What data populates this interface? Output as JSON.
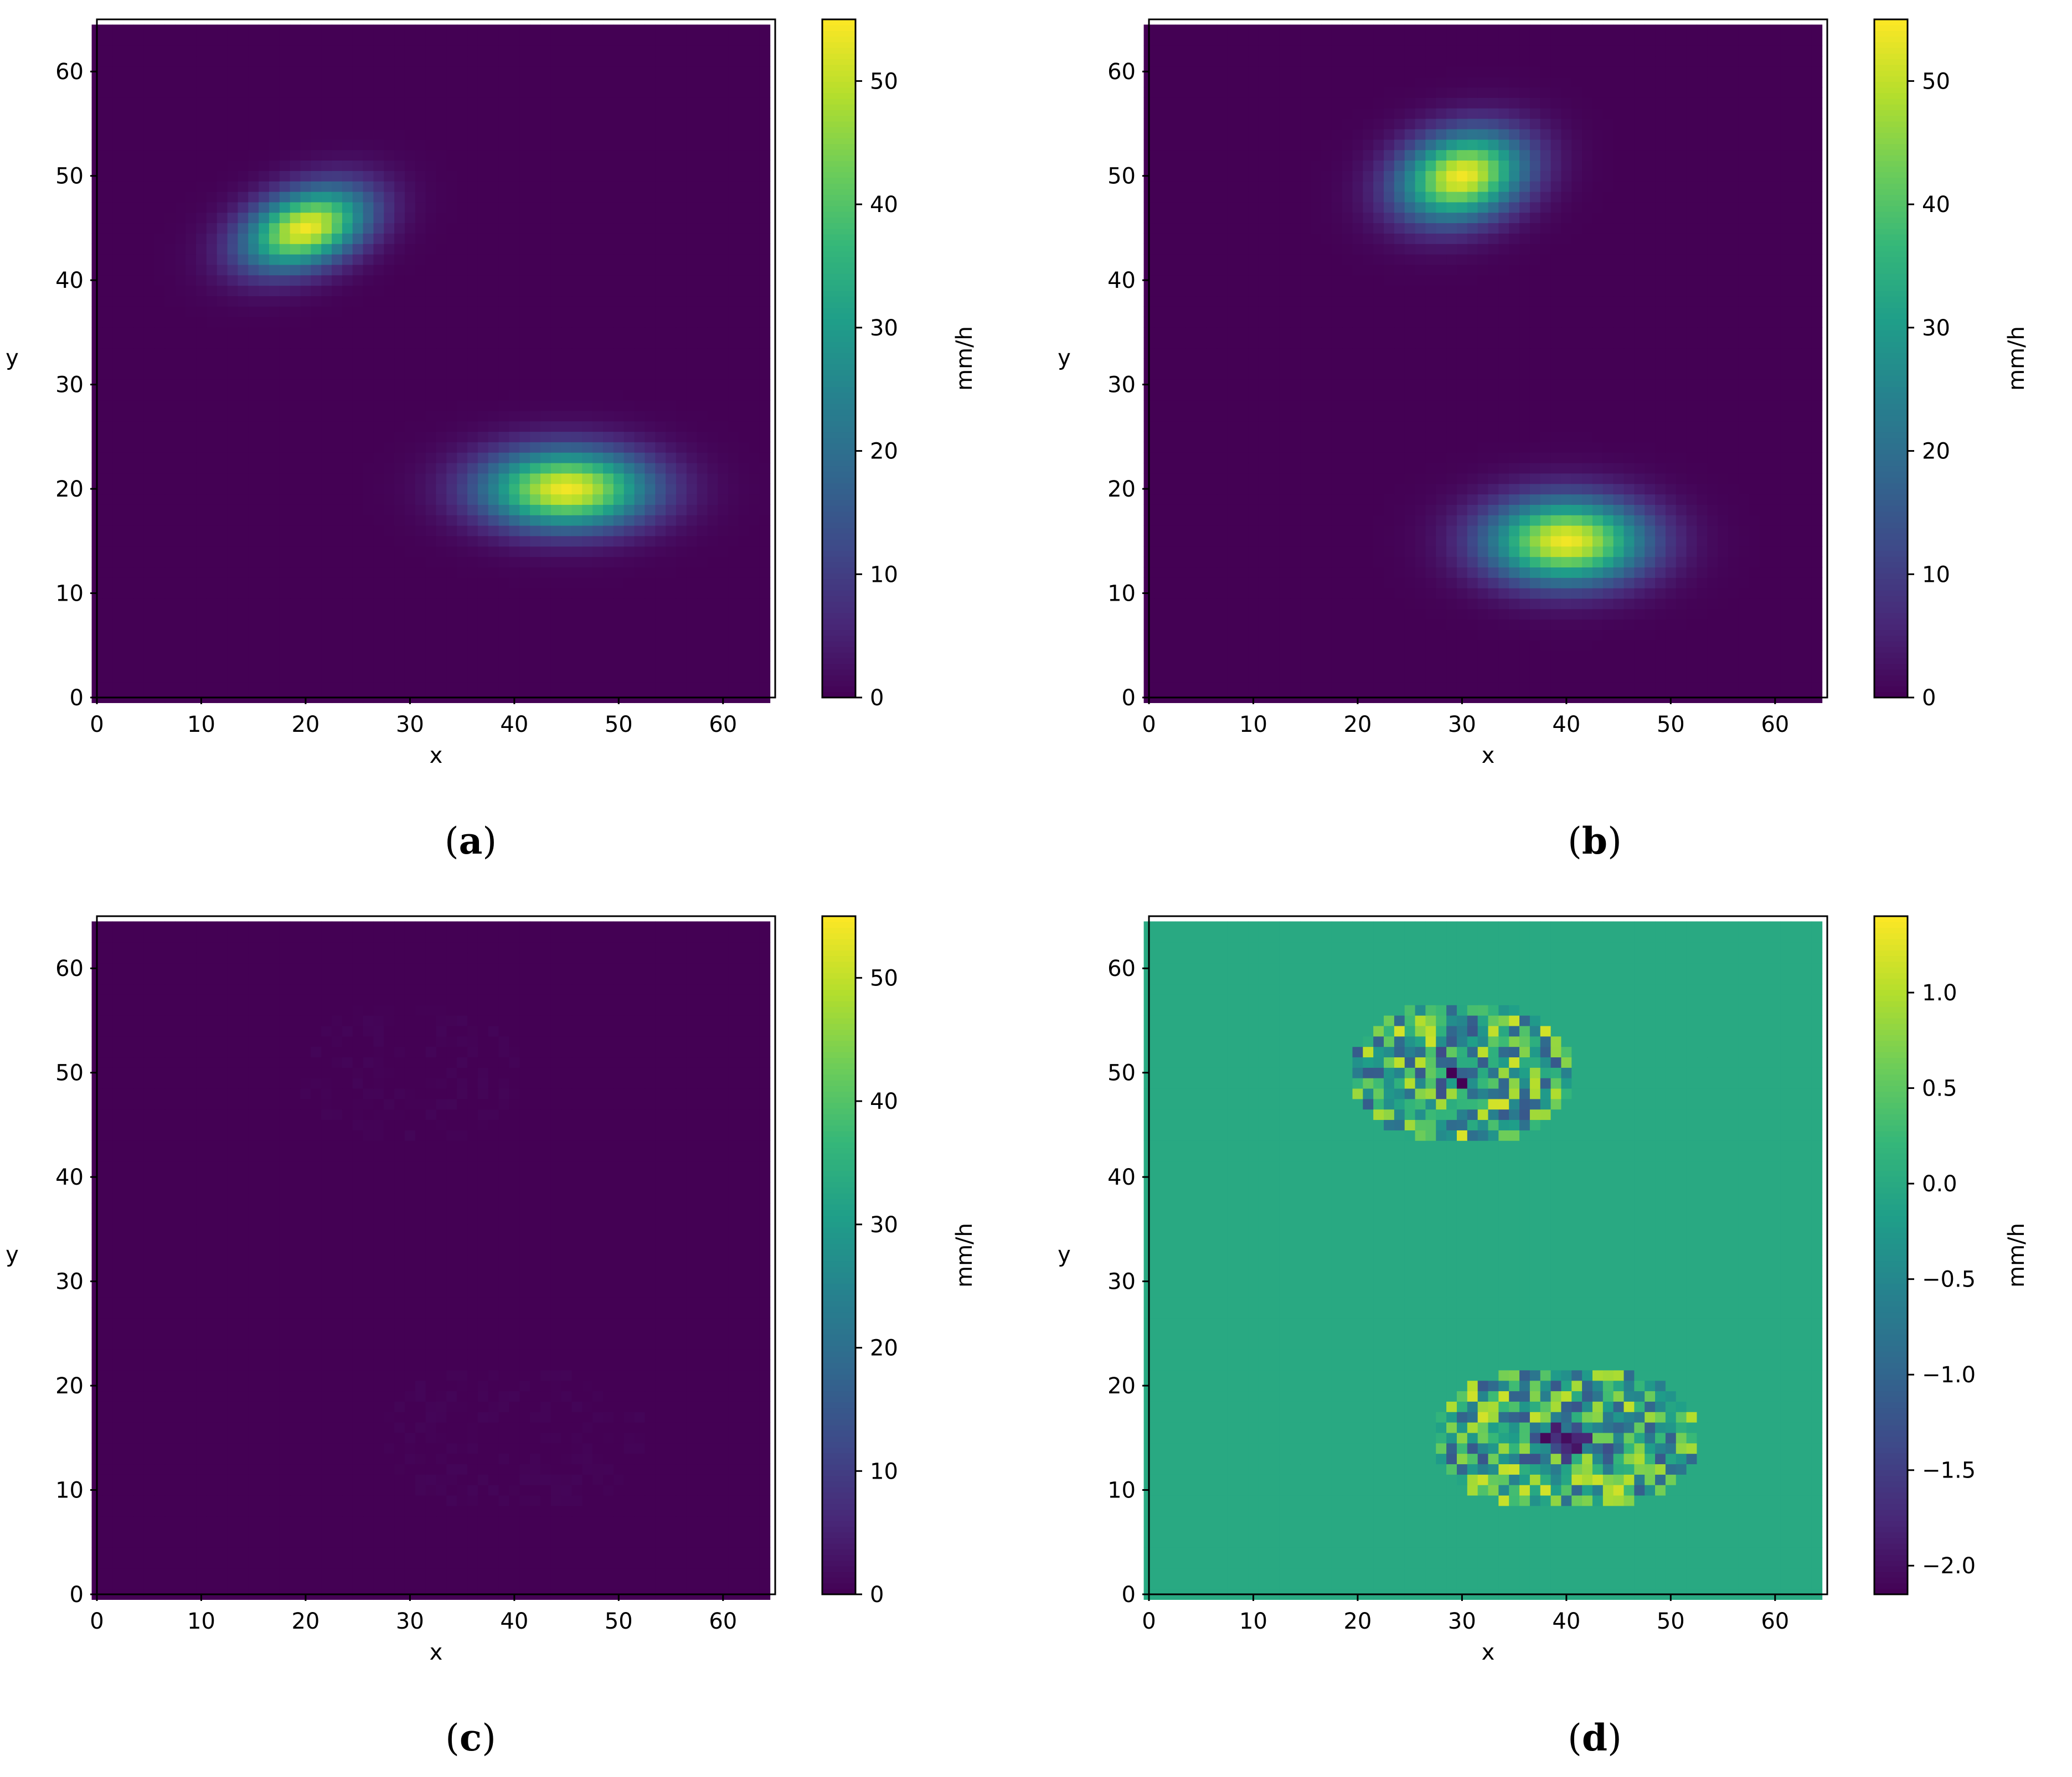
{
  "figure": {
    "panels": [
      {
        "caption_open": "(",
        "caption_letter": "a",
        "caption_close": ")"
      },
      {
        "caption_open": "(",
        "caption_letter": "b",
        "caption_close": ")"
      },
      {
        "caption_open": "(",
        "caption_letter": "c",
        "caption_close": ")"
      },
      {
        "caption_open": "(",
        "caption_letter": "d",
        "caption_close": ")"
      }
    ]
  },
  "colormap": "viridis",
  "chart_data": [
    {
      "type": "heatmap",
      "xlabel": "x",
      "ylabel": "y",
      "xlim": [
        0,
        65
      ],
      "ylim": [
        0,
        65
      ],
      "xticks": [
        0,
        10,
        20,
        30,
        40,
        50,
        60
      ],
      "yticks": [
        0,
        10,
        20,
        30,
        40,
        50,
        60
      ],
      "grid_size": 65,
      "colorbar": {
        "label": "mm/h",
        "range": [
          0,
          55
        ],
        "ticks": [
          0,
          10,
          20,
          30,
          40,
          50
        ]
      },
      "blobs": [
        {
          "center": [
            20,
            45
          ],
          "peak": 54,
          "sigma_x": 2.4,
          "sigma_y": 4.2,
          "angle_deg": -70
        },
        {
          "center": [
            45,
            20
          ],
          "peak": 54,
          "sigma_x": 5.5,
          "sigma_y": 2.6,
          "angle_deg": 0
        }
      ]
    },
    {
      "type": "heatmap",
      "xlabel": "x",
      "ylabel": "y",
      "xlim": [
        0,
        65
      ],
      "ylim": [
        0,
        65
      ],
      "xticks": [
        0,
        10,
        20,
        30,
        40,
        50,
        60
      ],
      "yticks": [
        0,
        10,
        20,
        30,
        40,
        50,
        60
      ],
      "grid_size": 65,
      "colorbar": {
        "label": "mm/h",
        "range": [
          0,
          55
        ],
        "ticks": [
          0,
          10,
          20,
          30,
          40,
          50
        ]
      },
      "blobs": [
        {
          "center": [
            30,
            50
          ],
          "peak": 54,
          "sigma_x": 4.2,
          "sigma_y": 2.8,
          "angle_deg": 15
        },
        {
          "center": [
            40,
            15
          ],
          "peak": 54,
          "sigma_x": 5.2,
          "sigma_y": 2.8,
          "angle_deg": 0
        }
      ]
    },
    {
      "type": "heatmap",
      "xlabel": "x",
      "ylabel": "y",
      "xlim": [
        0,
        65
      ],
      "ylim": [
        0,
        65
      ],
      "xticks": [
        0,
        10,
        20,
        30,
        40,
        50,
        60
      ],
      "yticks": [
        0,
        10,
        20,
        30,
        40,
        50,
        60
      ],
      "grid_size": 65,
      "colorbar": {
        "label": "mm/h",
        "range": [
          0,
          55
        ],
        "ticks": [
          0,
          10,
          20,
          30,
          40,
          50
        ]
      },
      "residual_of_panel": 1,
      "residual_scale": 0.6
    },
    {
      "type": "heatmap",
      "xlabel": "x",
      "ylabel": "y",
      "xlim": [
        0,
        65
      ],
      "ylim": [
        0,
        65
      ],
      "xticks": [
        0,
        10,
        20,
        30,
        40,
        50,
        60
      ],
      "yticks": [
        0,
        10,
        20,
        30,
        40,
        50,
        60
      ],
      "grid_size": 65,
      "colorbar": {
        "label": "mm/h",
        "range": [
          -2.15,
          1.4
        ],
        "ticks": [
          1.0,
          0.5,
          0.0,
          -0.5,
          -1.0,
          -1.5,
          -2.0
        ],
        "tick_labels": [
          "1.0",
          "0.5",
          "0.0",
          "−0.5",
          "−1.0",
          "−1.5",
          "−2.0"
        ]
      },
      "residual_of_panel": 1,
      "residual_scale": 1.0
    }
  ]
}
